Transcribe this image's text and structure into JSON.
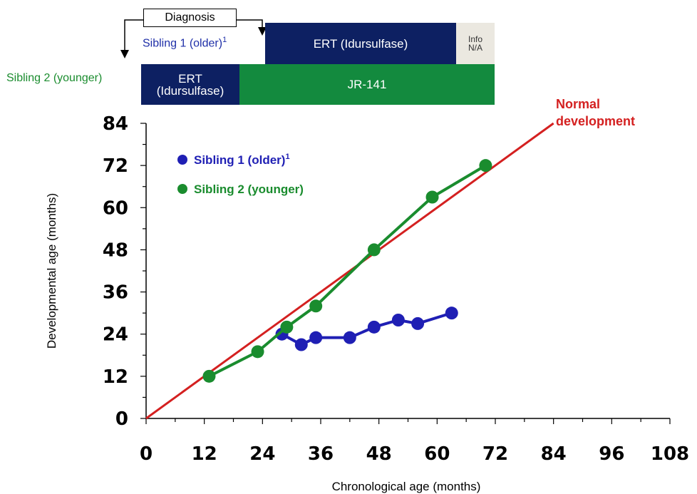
{
  "header": {
    "diagnosis_label": "Diagnosis",
    "sibling1_label": "Sibling 1 (older)",
    "sibling1_sup": "1",
    "sibling2_label": "Sibling 2 (younger)",
    "sibling1_bars": [
      {
        "label": "ERT (Idursulfase)",
        "color": "#0d2062"
      },
      {
        "label_line1": "Info",
        "label_line2": "N/A",
        "color": "#ebe8e0"
      }
    ],
    "sibling2_bars": [
      {
        "label_line1": "ERT",
        "label_line2": "(Idursulfase)",
        "color": "#0d2062"
      },
      {
        "label": "JR-141",
        "color": "#138a3e"
      }
    ]
  },
  "chart_data": {
    "type": "line",
    "xlabel": "Chronological age (months)",
    "ylabel": "Developmental age (months)",
    "xlim": [
      0,
      108
    ],
    "ylim": [
      0,
      84
    ],
    "x_ticks": [
      0,
      12,
      24,
      36,
      48,
      60,
      72,
      84,
      96,
      108
    ],
    "y_ticks": [
      0,
      12,
      24,
      36,
      48,
      60,
      72,
      84
    ],
    "reference_line": {
      "label_line1": "Normal",
      "label_line2": "development",
      "from": [
        0,
        0
      ],
      "to": [
        84,
        84
      ],
      "color": "#d42020"
    },
    "series": [
      {
        "name": "Sibling 1 (older)",
        "name_sup": "1",
        "color": "#1f1fb4",
        "x": [
          28,
          32,
          35,
          42,
          47,
          52,
          56,
          63
        ],
        "y": [
          24,
          21,
          23,
          23,
          26,
          28,
          27,
          30
        ]
      },
      {
        "name": "Sibling 2 (younger)",
        "name_sup": "",
        "color": "#1a8c2e",
        "x": [
          13,
          23,
          29,
          35,
          47,
          59,
          70
        ],
        "y": [
          12,
          19,
          26,
          32,
          48,
          63,
          72
        ]
      }
    ],
    "legend_position": "top-left"
  }
}
